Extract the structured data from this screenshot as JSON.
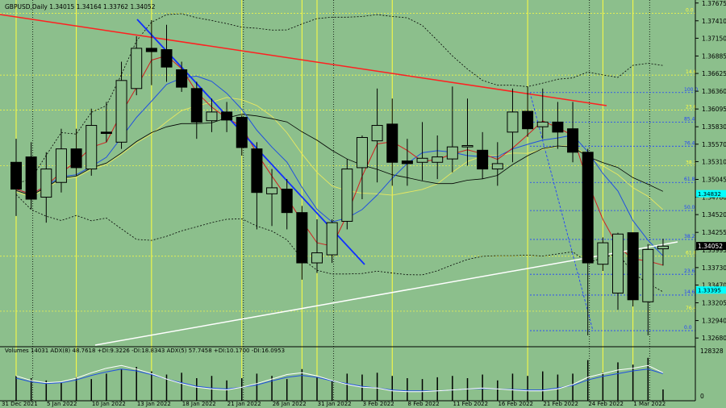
{
  "header": {
    "symbol_info": "GBPUSD,Daily  1.34015  1.34164  1.33762  1.34052"
  },
  "indicator": {
    "label": "Volumes 14031   ADX(8) 48.7618  +DI:9.3226  -DI:18.8343   ADX(5) 57.7458  +DI:10.1700  -DI:16.0953",
    "axis_top": "128328",
    "axis_bottom": "0"
  },
  "colors": {
    "background": "#8cbf8c",
    "bull_candle": "#8cbf8c",
    "bear_candle": "#000000",
    "trend_red": "#ff2020",
    "trend_blue": "#1030ff",
    "trend_white": "#ffffff",
    "vline_yellow": "#ffff40",
    "fib_yellow": "#ffff40",
    "fib_blue": "#2040ff",
    "price_tag_cyan": "#00ffff",
    "current_price_tag": "#000000"
  },
  "chart_data": {
    "type": "candlestick",
    "ylim": [
      1.3255,
      1.3772
    ],
    "price_ticks": [
      "1.37675",
      "1.37410",
      "1.37150",
      "1.36885",
      "1.36625",
      "1.36360",
      "1.36095",
      "1.35830",
      "1.35570",
      "1.35310",
      "1.35045",
      "1.34780",
      "1.34520",
      "1.34255",
      "1.33995",
      "1.33730",
      "1.33470",
      "1.33205",
      "1.32940",
      "1.32680"
    ],
    "date_ticks": [
      "31 Dec 2021",
      "5 Jan 2022",
      "10 Jan 2022",
      "13 Jan 2022",
      "18 Jan 2022",
      "21 Jan 2022",
      "26 Jan 2022",
      "31 Jan 2022",
      "3 Feb 2022",
      "8 Feb 2022",
      "11 Feb 2022",
      "16 Feb 2022",
      "21 Feb 2022",
      "24 Feb 2022",
      "1 Mar 2022"
    ],
    "current_price": "1.34052",
    "cyan_tags": [
      "1.34832",
      "1.33395"
    ],
    "candles": [
      {
        "o": 1.353,
        "h": 1.3565,
        "l": 1.345,
        "c": 1.349
      },
      {
        "o": 1.3538,
        "h": 1.356,
        "l": 1.346,
        "c": 1.3475
      },
      {
        "o": 1.3478,
        "h": 1.3545,
        "l": 1.344,
        "c": 1.352
      },
      {
        "o": 1.35,
        "h": 1.358,
        "l": 1.3485,
        "c": 1.355
      },
      {
        "o": 1.355,
        "h": 1.358,
        "l": 1.351,
        "c": 1.3522
      },
      {
        "o": 1.352,
        "h": 1.361,
        "l": 1.351,
        "c": 1.3585
      },
      {
        "o": 1.3575,
        "h": 1.362,
        "l": 1.356,
        "c": 1.3573
      },
      {
        "o": 1.356,
        "h": 1.368,
        "l": 1.355,
        "c": 1.3652
      },
      {
        "o": 1.364,
        "h": 1.3718,
        "l": 1.363,
        "c": 1.37
      },
      {
        "o": 1.37,
        "h": 1.3742,
        "l": 1.3645,
        "c": 1.3695
      },
      {
        "o": 1.3698,
        "h": 1.3735,
        "l": 1.365,
        "c": 1.3672
      },
      {
        "o": 1.3668,
        "h": 1.368,
        "l": 1.3635,
        "c": 1.3642
      },
      {
        "o": 1.364,
        "h": 1.365,
        "l": 1.3565,
        "c": 1.359
      },
      {
        "o": 1.3592,
        "h": 1.3625,
        "l": 1.3575,
        "c": 1.3605
      },
      {
        "o": 1.3605,
        "h": 1.362,
        "l": 1.3575,
        "c": 1.3593
      },
      {
        "o": 1.3597,
        "h": 1.36,
        "l": 1.354,
        "c": 1.3552
      },
      {
        "o": 1.355,
        "h": 1.356,
        "l": 1.343,
        "c": 1.3485
      },
      {
        "o": 1.3483,
        "h": 1.352,
        "l": 1.3435,
        "c": 1.3492
      },
      {
        "o": 1.349,
        "h": 1.3505,
        "l": 1.343,
        "c": 1.3455
      },
      {
        "o": 1.3455,
        "h": 1.3465,
        "l": 1.3355,
        "c": 1.338
      },
      {
        "o": 1.338,
        "h": 1.3445,
        "l": 1.3365,
        "c": 1.3395
      },
      {
        "o": 1.3392,
        "h": 1.3445,
        "l": 1.338,
        "c": 1.344
      },
      {
        "o": 1.3442,
        "h": 1.3535,
        "l": 1.343,
        "c": 1.352
      },
      {
        "o": 1.3522,
        "h": 1.357,
        "l": 1.3475,
        "c": 1.3567
      },
      {
        "o": 1.3562,
        "h": 1.364,
        "l": 1.35,
        "c": 1.3585
      },
      {
        "o": 1.3587,
        "h": 1.3625,
        "l": 1.3495,
        "c": 1.353
      },
      {
        "o": 1.3532,
        "h": 1.3565,
        "l": 1.3495,
        "c": 1.3528
      },
      {
        "o": 1.353,
        "h": 1.359,
        "l": 1.3503,
        "c": 1.3536
      },
      {
        "o": 1.353,
        "h": 1.357,
        "l": 1.3505,
        "c": 1.3538
      },
      {
        "o": 1.3535,
        "h": 1.3643,
        "l": 1.3515,
        "c": 1.3553
      },
      {
        "o": 1.3553,
        "h": 1.3625,
        "l": 1.3525,
        "c": 1.3555
      },
      {
        "o": 1.3548,
        "h": 1.3575,
        "l": 1.3505,
        "c": 1.352
      },
      {
        "o": 1.352,
        "h": 1.356,
        "l": 1.3495,
        "c": 1.3528
      },
      {
        "o": 1.3575,
        "h": 1.364,
        "l": 1.353,
        "c": 1.3605
      },
      {
        "o": 1.3606,
        "h": 1.3643,
        "l": 1.3568,
        "c": 1.358
      },
      {
        "o": 1.3583,
        "h": 1.364,
        "l": 1.3565,
        "c": 1.359
      },
      {
        "o": 1.359,
        "h": 1.362,
        "l": 1.355,
        "c": 1.3575
      },
      {
        "o": 1.358,
        "h": 1.362,
        "l": 1.353,
        "c": 1.3545
      },
      {
        "o": 1.3545,
        "h": 1.355,
        "l": 1.3272,
        "c": 1.338
      },
      {
        "o": 1.3378,
        "h": 1.3418,
        "l": 1.3368,
        "c": 1.341
      },
      {
        "o": 1.3335,
        "h": 1.3425,
        "l": 1.331,
        "c": 1.3423
      },
      {
        "o": 1.3425,
        "h": 1.3425,
        "l": 1.3315,
        "c": 1.3325
      },
      {
        "o": 1.3322,
        "h": 1.3408,
        "l": 1.3272,
        "c": 1.34
      },
      {
        "o": 1.3401,
        "h": 1.3416,
        "l": 1.3376,
        "c": 1.3405
      }
    ],
    "fib_right": [
      {
        "label": "100.0",
        "price": 1.3634
      },
      {
        "label": "85.4",
        "price": 1.359
      },
      {
        "label": "76.4",
        "price": 1.3554
      },
      {
        "label": "61.8",
        "price": 1.35
      },
      {
        "label": "50.0",
        "price": 1.3458
      },
      {
        "label": "38.2",
        "price": 1.3415
      },
      {
        "label": "23.6",
        "price": 1.3363
      },
      {
        "label": "14.6",
        "price": 1.3332
      },
      {
        "label": "0.0",
        "price": 1.3279
      }
    ],
    "fib_mid": [
      {
        "label": "0.0",
        "price": 1.3752
      },
      {
        "label": "14.6",
        "price": 1.366
      },
      {
        "label": "23.6",
        "price": 1.3608
      },
      {
        "label": "38.2",
        "price": 1.3525
      },
      {
        "label": "61.8",
        "price": 1.339
      },
      {
        "label": "76.4",
        "price": 1.3308
      }
    ],
    "volumes": [
      0.55,
      0.5,
      0.45,
      0.4,
      0.52,
      0.48,
      0.6,
      0.7,
      0.75,
      0.65,
      0.58,
      0.62,
      0.5,
      0.55,
      0.45,
      0.5,
      0.6,
      0.55,
      0.48,
      0.7,
      0.52,
      0.45,
      0.6,
      0.58,
      0.62,
      0.55,
      0.5,
      0.48,
      0.52,
      0.55,
      0.5,
      0.58,
      0.45,
      0.6,
      0.55,
      0.65,
      0.58,
      0.6,
      0.9,
      0.62,
      0.85,
      0.8,
      0.95,
      0.25
    ],
    "adx_white": [
      0.55,
      0.45,
      0.4,
      0.42,
      0.5,
      0.62,
      0.72,
      0.78,
      0.7,
      0.6,
      0.48,
      0.38,
      0.3,
      0.26,
      0.24,
      0.3,
      0.38,
      0.48,
      0.58,
      0.62,
      0.55,
      0.45,
      0.36,
      0.3,
      0.28,
      0.22,
      0.2,
      0.2,
      0.22,
      0.24,
      0.26,
      0.28,
      0.26,
      0.24,
      0.22,
      0.22,
      0.26,
      0.36,
      0.52,
      0.6,
      0.68,
      0.72,
      0.78,
      0.62
    ],
    "adx_blue": [
      0.5,
      0.42,
      0.38,
      0.4,
      0.46,
      0.56,
      0.64,
      0.7,
      0.66,
      0.58,
      0.48,
      0.4,
      0.32,
      0.28,
      0.26,
      0.3,
      0.35,
      0.44,
      0.52,
      0.56,
      0.52,
      0.44,
      0.38,
      0.32,
      0.28,
      0.24,
      0.22,
      0.22,
      0.22,
      0.24,
      0.26,
      0.27,
      0.26,
      0.25,
      0.24,
      0.24,
      0.28,
      0.34,
      0.46,
      0.54,
      0.6,
      0.66,
      0.7,
      0.6
    ]
  }
}
